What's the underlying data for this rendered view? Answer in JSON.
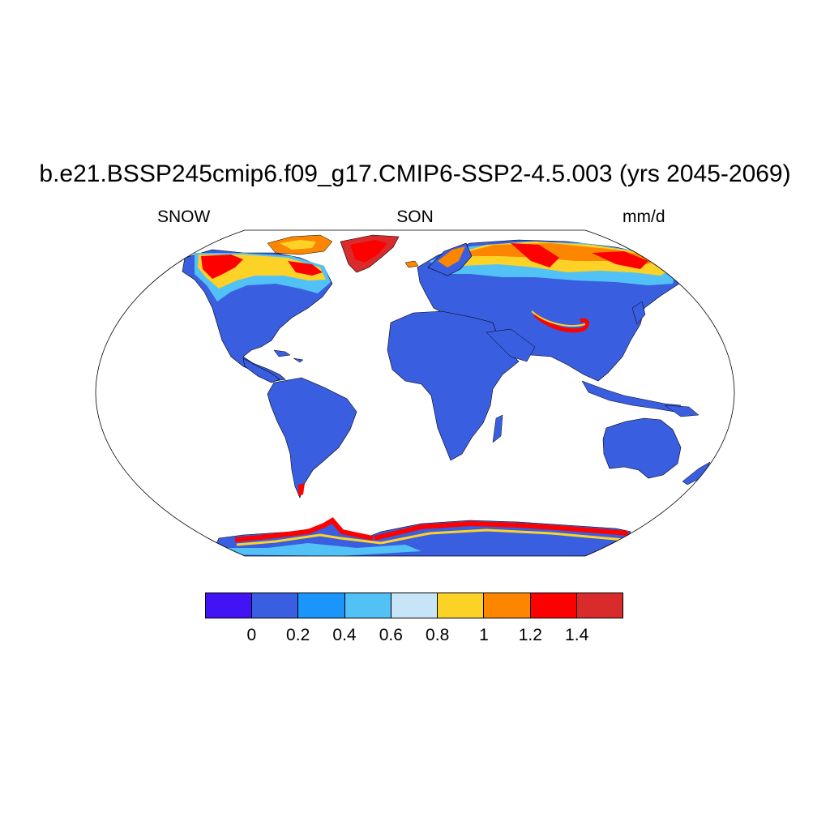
{
  "title": "b.e21.BSSP245cmip6.f09_g17.CMIP6-SSP2-4.5.003 (yrs 2045-2069)",
  "left_label": "SNOW",
  "center_label": "SON",
  "right_label": "mm/d",
  "colors": {
    "ocean": "#ffffff",
    "land_low": "#3a5ee0",
    "outline": "#000000"
  },
  "colorbar": {
    "colors": [
      "#4213f5",
      "#3a5ee0",
      "#1b95fa",
      "#52c1f5",
      "#c8e5f7",
      "#fdd226",
      "#fd8600",
      "#fd0000",
      "#d92b2b"
    ],
    "labels": [
      "0",
      "0.2",
      "0.4",
      "0.6",
      "0.8",
      "1",
      "1.2",
      "1.4"
    ]
  }
}
